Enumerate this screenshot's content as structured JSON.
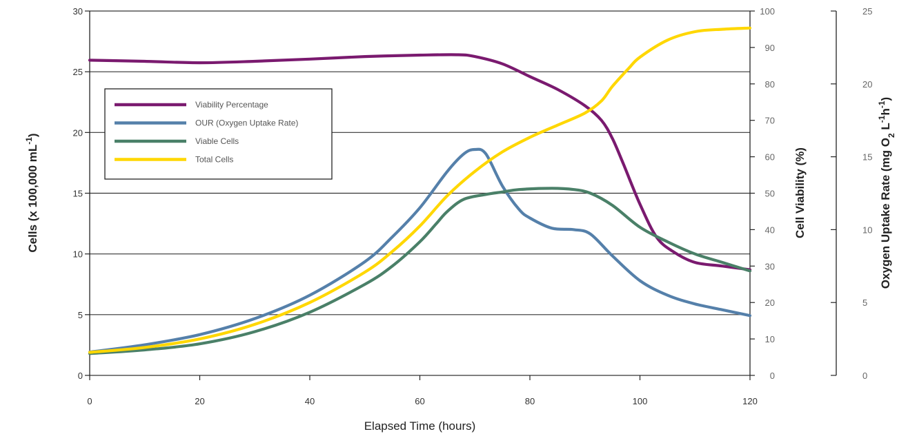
{
  "chart_data": {
    "type": "line",
    "xlabel": "Elapsed Time (hours)",
    "xlim": [
      0,
      120
    ],
    "xticks": [
      0,
      20,
      40,
      60,
      80,
      100,
      120
    ],
    "axes": {
      "left": {
        "label_main": "Cells (x 100,000 mL",
        "label_sup": "-1",
        "label_close": ")",
        "ylim": [
          0,
          30
        ],
        "ticks": [
          0,
          5,
          10,
          15,
          20,
          25,
          30
        ]
      },
      "right1": {
        "label": "Cell Viability (%)",
        "ylim": [
          0,
          100
        ],
        "ticks": [
          0,
          10,
          20,
          30,
          40,
          50,
          60,
          70,
          80,
          90,
          100
        ]
      },
      "right2": {
        "label_main": "Oxygen Uptake Rate (mg O",
        "label_sub": "2",
        "label_mid": " L",
        "label_sup1": "-1",
        "label_h": "h",
        "label_sup2": "-1",
        "label_close": ")",
        "ylim": [
          0,
          25
        ],
        "ticks": [
          0,
          5,
          10,
          15,
          20,
          25
        ]
      }
    },
    "grid": {
      "horizontal": true,
      "vertical": false
    },
    "legend_position": "upper-left",
    "series": [
      {
        "name": "Viability Percentage",
        "axis": "right1",
        "color": "#7a1a6f",
        "points": [
          [
            0,
            86.5
          ],
          [
            10,
            86.2
          ],
          [
            20,
            85.8
          ],
          [
            30,
            86.2
          ],
          [
            40,
            86.8
          ],
          [
            50,
            87.5
          ],
          [
            60,
            87.9
          ],
          [
            67,
            88
          ],
          [
            70,
            87.5
          ],
          [
            75,
            85.5
          ],
          [
            80,
            82
          ],
          [
            85,
            78.5
          ],
          [
            90,
            74
          ],
          [
            93,
            70
          ],
          [
            95,
            65
          ],
          [
            97,
            58
          ],
          [
            100,
            47
          ],
          [
            103,
            38
          ],
          [
            106,
            34
          ],
          [
            110,
            31
          ],
          [
            115,
            30
          ],
          [
            120,
            29
          ]
        ]
      },
      {
        "name": "OUR (Oxygen Uptake Rate)",
        "axis": "right2",
        "color": "#5580aa",
        "points": [
          [
            0,
            1.6
          ],
          [
            10,
            2.1
          ],
          [
            20,
            2.8
          ],
          [
            30,
            3.9
          ],
          [
            40,
            5.5
          ],
          [
            50,
            7.8
          ],
          [
            55,
            9.5
          ],
          [
            60,
            11.5
          ],
          [
            65,
            14
          ],
          [
            68,
            15.2
          ],
          [
            70,
            15.5
          ],
          [
            72,
            15.2
          ],
          [
            75,
            13
          ],
          [
            78,
            11.4
          ],
          [
            80,
            10.8
          ],
          [
            84,
            10.1
          ],
          [
            88,
            10
          ],
          [
            91,
            9.7
          ],
          [
            95,
            8.2
          ],
          [
            100,
            6.5
          ],
          [
            105,
            5.5
          ],
          [
            110,
            4.9
          ],
          [
            115,
            4.5
          ],
          [
            120,
            4.1
          ]
        ]
      },
      {
        "name": "Viable Cells",
        "axis": "left",
        "color": "#4a8068",
        "points": [
          [
            0,
            1.8
          ],
          [
            10,
            2.1
          ],
          [
            20,
            2.6
          ],
          [
            30,
            3.6
          ],
          [
            40,
            5.2
          ],
          [
            50,
            7.5
          ],
          [
            55,
            9
          ],
          [
            60,
            11
          ],
          [
            63,
            12.5
          ],
          [
            65,
            13.5
          ],
          [
            68,
            14.5
          ],
          [
            72,
            14.9
          ],
          [
            75,
            15.1
          ],
          [
            78,
            15.3
          ],
          [
            84,
            15.4
          ],
          [
            88,
            15.3
          ],
          [
            91,
            15
          ],
          [
            95,
            14
          ],
          [
            100,
            12.2
          ],
          [
            105,
            11
          ],
          [
            110,
            10
          ],
          [
            115,
            9.3
          ],
          [
            120,
            8.6
          ]
        ]
      },
      {
        "name": "Total Cells",
        "axis": "left",
        "color": "#ffd700",
        "points": [
          [
            0,
            1.9
          ],
          [
            10,
            2.3
          ],
          [
            20,
            3
          ],
          [
            30,
            4.2
          ],
          [
            40,
            6
          ],
          [
            50,
            8.5
          ],
          [
            55,
            10.2
          ],
          [
            60,
            12.3
          ],
          [
            65,
            14.8
          ],
          [
            70,
            16.8
          ],
          [
            75,
            18.4
          ],
          [
            80,
            19.6
          ],
          [
            85,
            20.6
          ],
          [
            90,
            21.6
          ],
          [
            93,
            22.6
          ],
          [
            95,
            23.8
          ],
          [
            98,
            25.3
          ],
          [
            100,
            26.2
          ],
          [
            105,
            27.6
          ],
          [
            110,
            28.3
          ],
          [
            115,
            28.5
          ],
          [
            120,
            28.6
          ]
        ]
      }
    ]
  }
}
